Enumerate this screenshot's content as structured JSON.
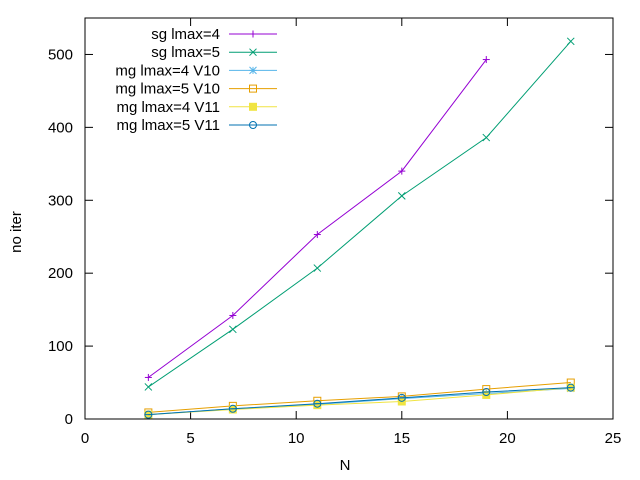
{
  "chart_data": {
    "type": "line",
    "title": "",
    "xlabel": "N",
    "ylabel": "no iter",
    "xlim": [
      0,
      25
    ],
    "ylim": [
      0,
      550
    ],
    "xticks": [
      0,
      5,
      10,
      15,
      20,
      25
    ],
    "yticks": [
      0,
      100,
      200,
      300,
      400,
      500
    ],
    "grid": false,
    "legend_position": "top-left",
    "series": [
      {
        "name": "sg lmax=4",
        "color": "#9400d3",
        "marker": "plus",
        "x": [
          3,
          7,
          11,
          15,
          19
        ],
        "y": [
          57,
          142,
          253,
          340,
          493
        ]
      },
      {
        "name": "sg lmax=5",
        "color": "#009e73",
        "marker": "cross",
        "x": [
          3,
          7,
          11,
          15,
          19,
          23
        ],
        "y": [
          44,
          123,
          207,
          306,
          386,
          518
        ]
      },
      {
        "name": "mg lmax=4 V10",
        "color": "#56b4e9",
        "marker": "star",
        "x": [
          3,
          7,
          11,
          15,
          19,
          23
        ],
        "y": [
          6,
          14,
          20,
          28,
          35,
          42
        ]
      },
      {
        "name": "mg lmax=5 V10",
        "color": "#e69f00",
        "marker": "square",
        "x": [
          3,
          7,
          11,
          15,
          19,
          23
        ],
        "y": [
          9,
          18,
          25,
          31,
          41,
          50
        ]
      },
      {
        "name": "mg lmax=4 V11",
        "color": "#f0e442",
        "marker": "filled-square",
        "x": [
          3,
          7,
          11,
          15,
          19,
          23
        ],
        "y": [
          6,
          13,
          19,
          24,
          33,
          43
        ]
      },
      {
        "name": "mg lmax=5 V11",
        "color": "#0072b2",
        "marker": "circle",
        "x": [
          3,
          7,
          11,
          15,
          19,
          23
        ],
        "y": [
          6,
          14,
          21,
          29,
          37,
          43
        ]
      }
    ]
  }
}
